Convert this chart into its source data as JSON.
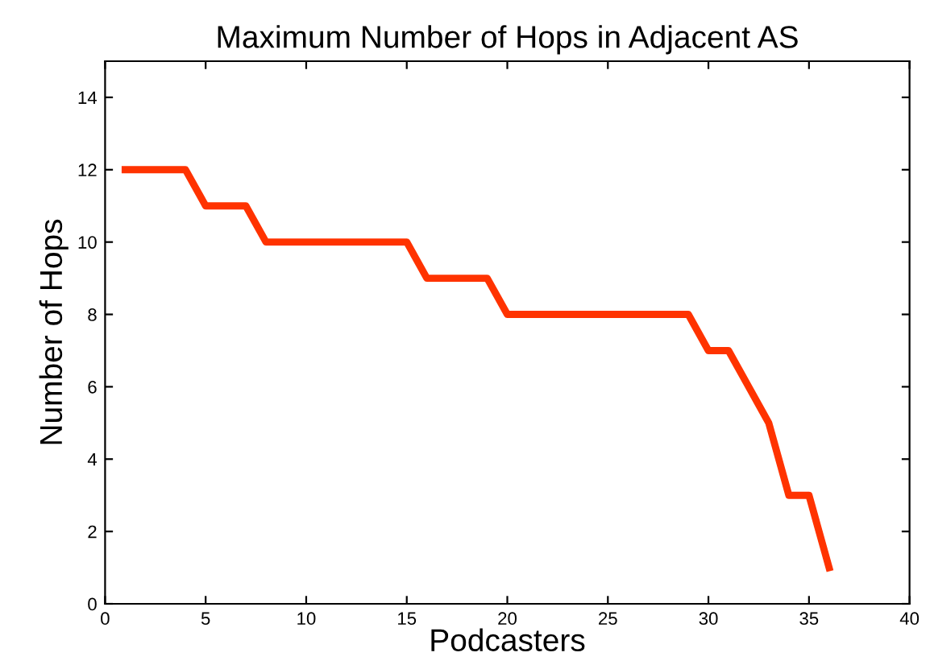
{
  "chart_data": {
    "type": "line",
    "title": "Maximum Number of Hops in Adjacent AS",
    "xlabel": "Podcasters",
    "ylabel": "Number of Hops",
    "x": [
      1,
      2,
      3,
      4,
      5,
      6,
      7,
      8,
      9,
      10,
      11,
      12,
      13,
      14,
      15,
      16,
      17,
      18,
      19,
      20,
      21,
      22,
      23,
      24,
      25,
      26,
      27,
      28,
      29,
      30,
      31,
      32,
      33,
      34,
      35,
      36
    ],
    "series": [
      {
        "color": "#ff3300",
        "values": [
          12,
          12,
          12,
          12,
          11,
          11,
          11,
          10,
          10,
          10,
          10,
          10,
          10,
          10,
          10,
          9,
          9,
          9,
          9,
          8,
          8,
          8,
          8,
          8,
          8,
          8,
          8,
          8,
          8,
          7,
          7,
          6,
          5,
          3,
          3,
          1
        ]
      }
    ],
    "xlim": [
      0,
      40
    ],
    "xticks": [
      0,
      5,
      10,
      15,
      20,
      25,
      30,
      35,
      40
    ],
    "ylim": [
      0,
      15
    ],
    "yticks": [
      0,
      2,
      4,
      6,
      8,
      10,
      12,
      14
    ],
    "grid": false,
    "legend": false,
    "marker": "none",
    "line_style": "solid"
  }
}
